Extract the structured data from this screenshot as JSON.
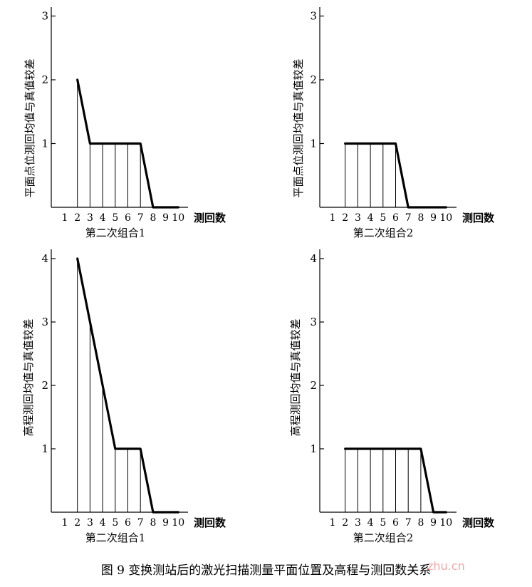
{
  "caption": "图 9   变换测站后的激光扫描测量平面位置及高程与测回数关系",
  "watermark": "zhu.cn",
  "chart_data": [
    {
      "type": "line",
      "ylabel": "平面点位测回均值与真值较差",
      "xlabel": "测回数",
      "subtitle": "第二次组合1",
      "x_ticks": [
        1,
        2,
        3,
        4,
        5,
        6,
        7,
        8,
        9,
        10
      ],
      "y_ticks": [
        1,
        2,
        3
      ],
      "ylim": [
        0,
        3
      ],
      "points": [
        [
          2,
          2
        ],
        [
          3,
          1
        ],
        [
          4,
          1
        ],
        [
          5,
          1
        ],
        [
          6,
          1
        ],
        [
          7,
          1
        ],
        [
          8,
          0
        ],
        [
          9,
          0
        ],
        [
          10,
          0
        ]
      ],
      "drop_lines": [
        2,
        3,
        4,
        5,
        6,
        7
      ]
    },
    {
      "type": "line",
      "ylabel": "平面点位测回均值与真值较差",
      "xlabel": "测回数",
      "subtitle": "第二次组合2",
      "x_ticks": [
        1,
        2,
        3,
        4,
        5,
        6,
        7,
        8,
        9,
        10
      ],
      "y_ticks": [
        1,
        2,
        3
      ],
      "ylim": [
        0,
        3
      ],
      "points": [
        [
          2,
          1
        ],
        [
          3,
          1
        ],
        [
          4,
          1
        ],
        [
          5,
          1
        ],
        [
          6,
          1
        ],
        [
          7,
          0
        ],
        [
          8,
          0
        ],
        [
          9,
          0
        ],
        [
          10,
          0
        ]
      ],
      "drop_lines": [
        2,
        3,
        4,
        5,
        6
      ]
    },
    {
      "type": "line",
      "ylabel": "高程测回均值与真值较差",
      "xlabel": "测回数",
      "subtitle": "第二次组合1",
      "x_ticks": [
        1,
        2,
        3,
        4,
        5,
        6,
        7,
        8,
        9,
        10
      ],
      "y_ticks": [
        1,
        2,
        3,
        4
      ],
      "ylim": [
        0,
        4
      ],
      "points": [
        [
          2,
          4
        ],
        [
          3,
          3
        ],
        [
          4,
          2
        ],
        [
          5,
          1
        ],
        [
          6,
          1
        ],
        [
          7,
          1
        ],
        [
          8,
          0
        ],
        [
          9,
          0
        ],
        [
          10,
          0
        ]
      ],
      "drop_lines": [
        2,
        3,
        4,
        5,
        6,
        7
      ]
    },
    {
      "type": "line",
      "ylabel": "高程测回均值与真值较差",
      "xlabel": "测回数",
      "subtitle": "第二次组合2",
      "x_ticks": [
        1,
        2,
        3,
        4,
        5,
        6,
        7,
        8,
        9,
        10
      ],
      "y_ticks": [
        1,
        2,
        3,
        4
      ],
      "ylim": [
        0,
        4
      ],
      "points": [
        [
          2,
          1
        ],
        [
          3,
          1
        ],
        [
          4,
          1
        ],
        [
          5,
          1
        ],
        [
          6,
          1
        ],
        [
          7,
          1
        ],
        [
          8,
          1
        ],
        [
          9,
          0
        ],
        [
          10,
          0
        ]
      ],
      "drop_lines": [
        2,
        3,
        4,
        5,
        6,
        7,
        8
      ]
    }
  ]
}
